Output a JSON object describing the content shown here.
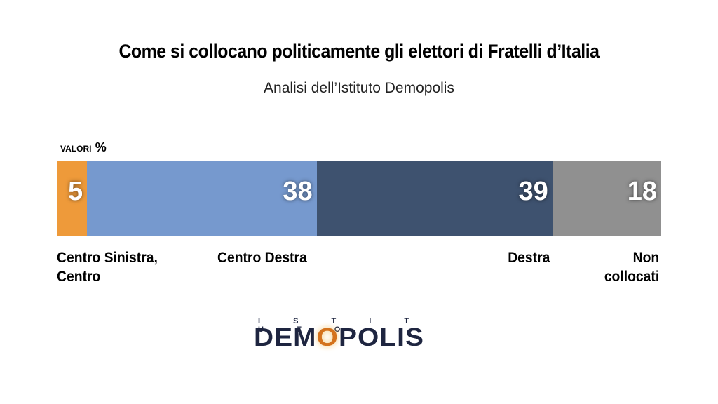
{
  "header": {
    "title": "Come si collocano politicamente gli elettori di Fratelli d’Italia",
    "subtitle": "Analisi dell’Istituto Demopolis"
  },
  "unit": {
    "label": "VALORI",
    "symbol": "%"
  },
  "logo": {
    "top": "I S T I T U T O",
    "pre": "DEM",
    "o": "O",
    "post": "POLIS"
  },
  "colors": {
    "orange": "#EE9A3A",
    "light_blue": "#7699CE",
    "dark_blue": "#3E526F",
    "gray": "#909090"
  },
  "chart_data": {
    "type": "bar",
    "orientation": "horizontal-stacked",
    "categories": [
      "Centro Sinistra, Centro",
      "Centro Destra",
      "Destra",
      "Non collocati"
    ],
    "values": [
      5,
      38,
      39,
      18
    ],
    "value_labels": [
      "5",
      "38",
      "39",
      "18"
    ],
    "colors": [
      "#EE9A3A",
      "#7699CE",
      "#3E526F",
      "#909090"
    ],
    "xlim": [
      0,
      100
    ],
    "unit": "%"
  },
  "labels": [
    {
      "lines": [
        "Centro Sinistra,",
        "Centro"
      ]
    },
    {
      "lines": [
        "Centro Destra"
      ]
    },
    {
      "lines": [
        "Destra"
      ]
    },
    {
      "lines": [
        "Non",
        "collocati"
      ]
    }
  ]
}
